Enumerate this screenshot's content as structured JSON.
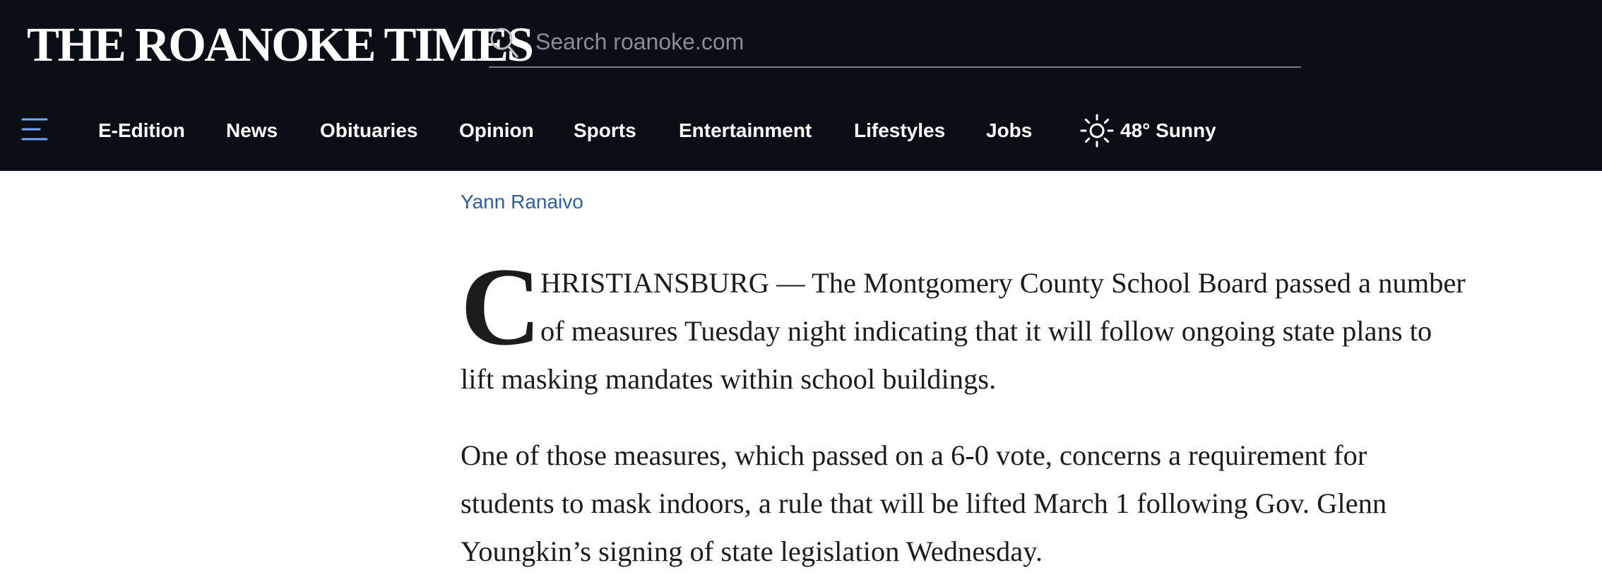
{
  "header": {
    "logo": "THE ROANOKE TIMES",
    "search": {
      "placeholder": "Search roanoke.com",
      "value": ""
    },
    "nav": {
      "items": [
        "E-Edition",
        "News",
        "Obituaries",
        "Opinion",
        "Sports",
        "Entertainment",
        "Lifestyles",
        "Jobs"
      ],
      "weather": {
        "text": "48° Sunny",
        "icon": "sun-icon"
      }
    },
    "icons": {
      "search": "search-icon",
      "menu": "hamburger-menu-icon"
    },
    "colors": {
      "header_bg": "#0a0e15",
      "menu_icon": "#6ea8ff",
      "byline": "#2d5fa6"
    }
  },
  "article": {
    "byline": "Yann Ranaivo",
    "dropcap": "C",
    "paragraphs": [
      {
        "lines": [
          "HRISTIANSBURG — The Montgomery County School Board passed a number",
          "of measures Tuesday night indicating that it will follow ongoing state plans to",
          "lift masking mandates within school buildings."
        ]
      },
      {
        "lines": [
          "One of those measures, which passed on a 6-0 vote, concerns a requirement for",
          "students to mask indoors, a rule that will be lifted March 1 following Gov. Glenn",
          "Youngkin’s signing of state legislation Wednesday."
        ]
      }
    ]
  }
}
